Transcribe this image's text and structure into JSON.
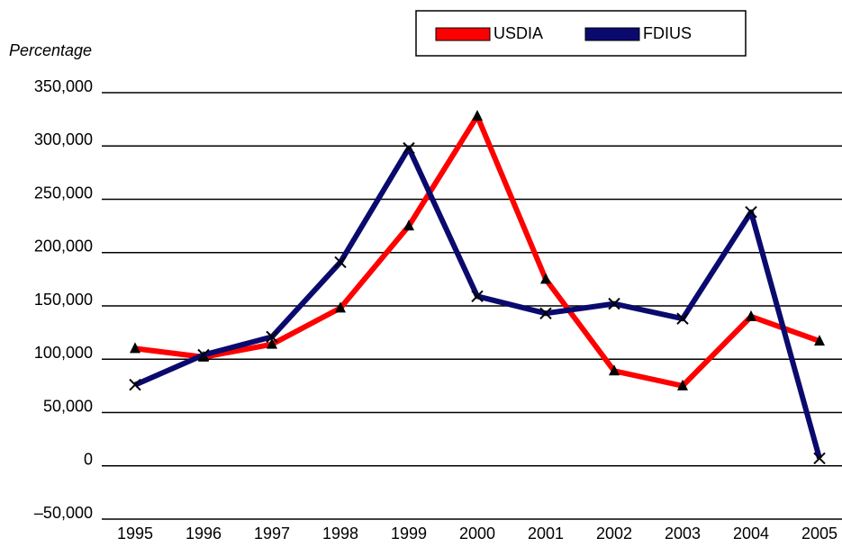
{
  "chart_data": {
    "type": "line",
    "y_axis_label": "Percentage",
    "categories": [
      "1995",
      "1996",
      "1997",
      "1998",
      "1999",
      "2000",
      "2001",
      "2002",
      "2003",
      "2004",
      "2005"
    ],
    "series": [
      {
        "name": "USDIA",
        "color": "#ff0000",
        "marker": "triangle",
        "values": [
          110000,
          102000,
          114000,
          148000,
          225000,
          328000,
          175000,
          89000,
          75000,
          140000,
          117000
        ]
      },
      {
        "name": "FDIUS",
        "color": "#0a0a6e",
        "marker": "x",
        "values": [
          76000,
          104000,
          121000,
          191000,
          298000,
          159000,
          143000,
          152000,
          138000,
          238000,
          7000
        ]
      }
    ],
    "ylim": [
      -50000,
      350000
    ],
    "yticks": [
      {
        "value": -50000,
        "label": "–50,000"
      },
      0,
      {
        "value": 50000,
        "label": "50,000"
      },
      {
        "value": 100000,
        "label": "100,000"
      },
      {
        "value": 150000,
        "label": "150,000"
      },
      {
        "value": 200000,
        "label": "200,000"
      },
      {
        "value": 250000,
        "label": "250,000"
      },
      {
        "value": 300000,
        "label": "300,000"
      },
      {
        "value": 350000,
        "label": "350,000"
      }
    ],
    "grid": true,
    "legend": "top"
  }
}
